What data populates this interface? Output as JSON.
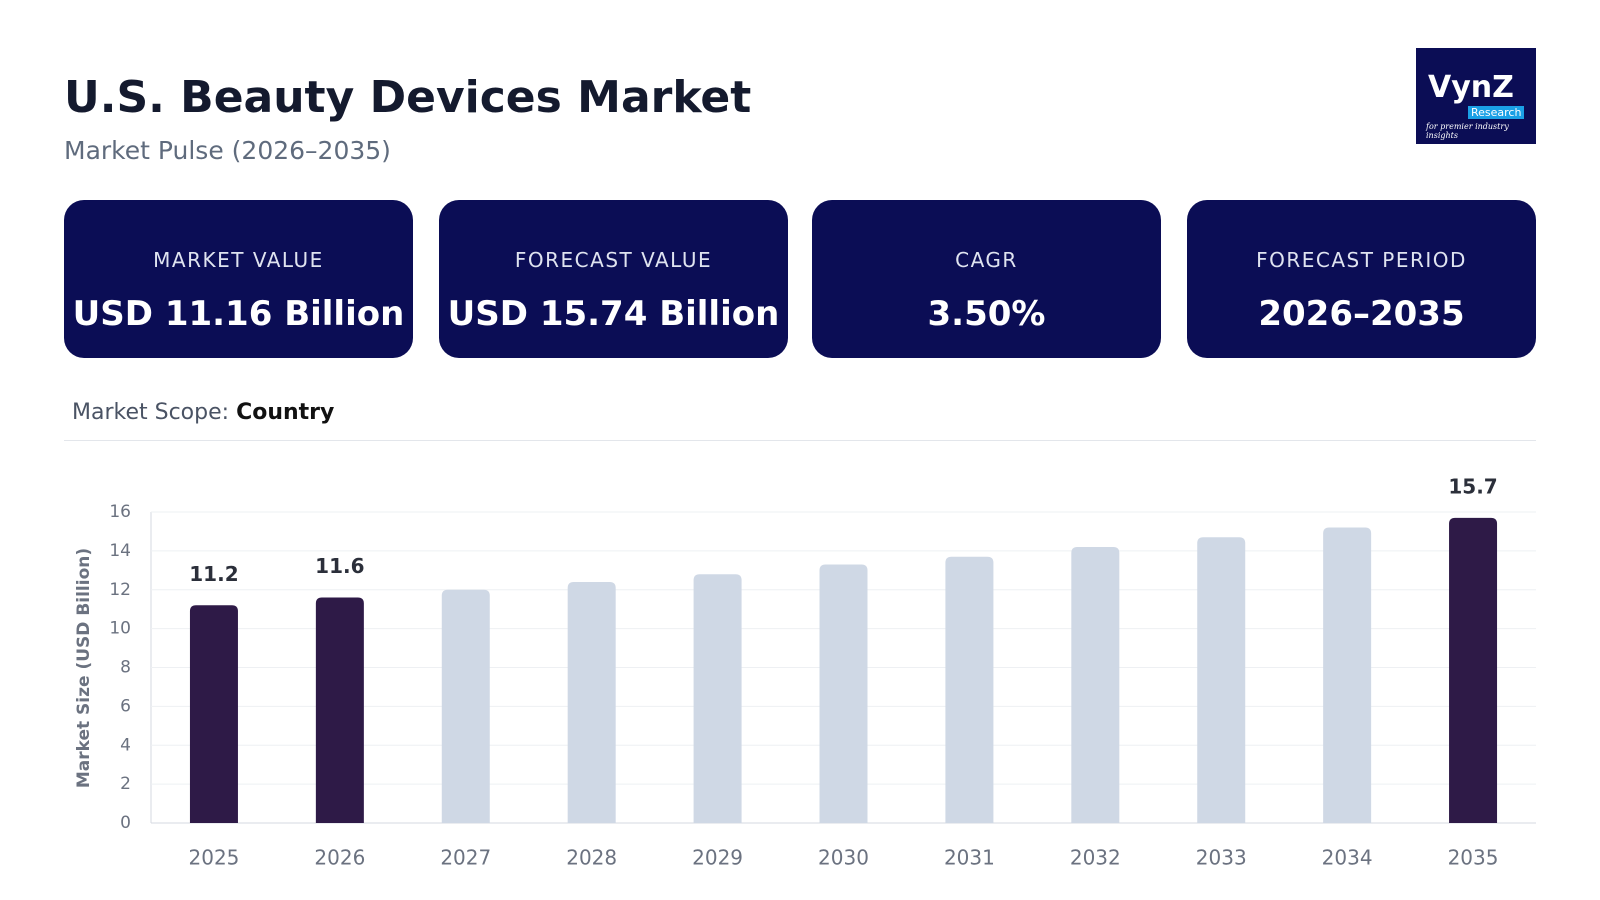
{
  "header": {
    "title": "U.S. Beauty Devices Market",
    "subtitle": "Market Pulse (2026–2035)"
  },
  "logo": {
    "name": "VynZ",
    "tag": "Research",
    "tagline": "for premier industry insights"
  },
  "cards": [
    {
      "label": "MARKET VALUE",
      "value": "USD 11.16 Billion"
    },
    {
      "label": "FORECAST VALUE",
      "value": "USD 15.74 Billion"
    },
    {
      "label": "CAGR",
      "value": "3.50%"
    },
    {
      "label": "FORECAST PERIOD",
      "value": "2026–2035"
    }
  ],
  "scope": {
    "label": "Market Scope:",
    "value": "Country"
  },
  "chart_data": {
    "type": "bar",
    "y_label": "Market Size (USD Billion)",
    "categories": [
      "2025",
      "2026",
      "2027",
      "2028",
      "2029",
      "2030",
      "2031",
      "2032",
      "2033",
      "2034",
      "2035"
    ],
    "values": [
      11.2,
      11.6,
      12.0,
      12.4,
      12.8,
      13.3,
      13.7,
      14.2,
      14.7,
      15.2,
      15.7
    ],
    "value_labels": [
      "11.2",
      "11.6",
      null,
      null,
      null,
      null,
      null,
      null,
      null,
      null,
      "15.7"
    ],
    "colors": [
      "#2e1a47",
      "#2e1a47",
      "#cfd8e5",
      "#cfd8e5",
      "#cfd8e5",
      "#cfd8e5",
      "#cfd8e5",
      "#cfd8e5",
      "#cfd8e5",
      "#cfd8e5",
      "#2e1a47"
    ],
    "ylim": [
      0,
      16
    ],
    "yticks": [
      0,
      2,
      4,
      6,
      8,
      10,
      12,
      14,
      16
    ],
    "grid": true
  }
}
